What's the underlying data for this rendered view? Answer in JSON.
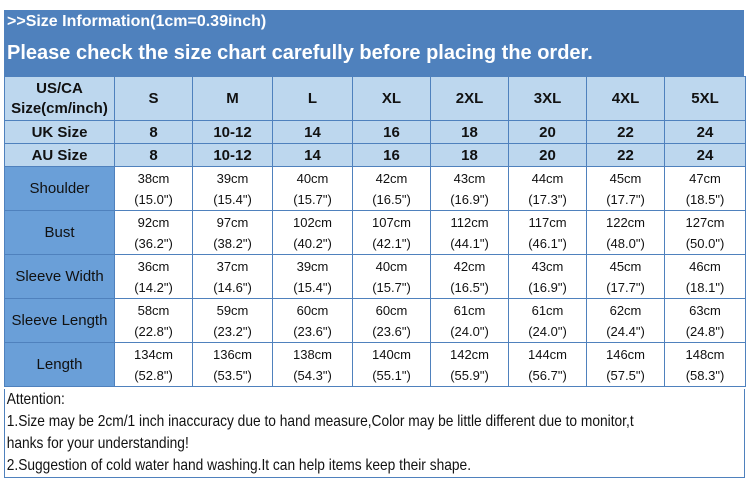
{
  "header": {
    "line1": ">>Size Information(1cm=0.39inch)",
    "line2": "Please check the size chart carefully before placing the order."
  },
  "table": {
    "corner": [
      "US/CA",
      "Size(cm/inch)"
    ],
    "sizes": [
      "S",
      "M",
      "L",
      "XL",
      "2XL",
      "3XL",
      "4XL",
      "5XL"
    ],
    "uk": {
      "label": "UK Size",
      "values": [
        "8",
        "10-12",
        "14",
        "16",
        "18",
        "20",
        "22",
        "24"
      ]
    },
    "au": {
      "label": "AU  Size",
      "values": [
        "8",
        "10-12",
        "14",
        "16",
        "18",
        "20",
        "22",
        "24"
      ]
    },
    "rows": [
      {
        "label": "Shoulder",
        "cm": [
          "38cm",
          "39cm",
          "40cm",
          "42cm",
          "43cm",
          "44cm",
          "45cm",
          "47cm"
        ],
        "inch": [
          "(15.0\")",
          "(15.4\")",
          "(15.7\")",
          "(16.5\")",
          "(16.9\")",
          "(17.3\")",
          "(17.7\")",
          "(18.5\")"
        ]
      },
      {
        "label": "Bust",
        "cm": [
          "92cm",
          "97cm",
          "102cm",
          "107cm",
          "112cm",
          "117cm",
          "122cm",
          "127cm"
        ],
        "inch": [
          "(36.2\")",
          "(38.2\")",
          "(40.2\")",
          "(42.1\")",
          "(44.1\")",
          "(46.1\")",
          "(48.0\")",
          "(50.0\")"
        ]
      },
      {
        "label": "Sleeve Width",
        "cm": [
          "36cm",
          "37cm",
          "39cm",
          "40cm",
          "42cm",
          "43cm",
          "45cm",
          "46cm"
        ],
        "inch": [
          "(14.2\")",
          "(14.6\")",
          "(15.4\")",
          "(15.7\")",
          "(16.5\")",
          "(16.9\")",
          "(17.7\")",
          "(18.1\")"
        ]
      },
      {
        "label": "Sleeve Length",
        "cm": [
          "58cm",
          "59cm",
          "60cm",
          "60cm",
          "61cm",
          "61cm",
          "62cm",
          "63cm"
        ],
        "inch": [
          "(22.8\")",
          "(23.2\")",
          "(23.6\")",
          "(23.6\")",
          "(24.0\")",
          "(24.0\")",
          "(24.4\")",
          "(24.8\")"
        ]
      },
      {
        "label": "Length",
        "cm": [
          "134cm",
          "136cm",
          "138cm",
          "140cm",
          "142cm",
          "144cm",
          "146cm",
          "148cm"
        ],
        "inch": [
          "(52.8\")",
          "(53.5\")",
          "(54.3\")",
          "(55.1\")",
          "(55.9\")",
          "(56.7\")",
          "(57.5\")",
          "(58.3\")"
        ]
      }
    ]
  },
  "attention": {
    "title": "Attention:",
    "lines": [
      "1.Size may be 2cm/1 inch inaccuracy due to hand measure,Color may be little different due to monitor,t",
      "hanks for your understanding!",
      "2.Suggestion of cold water hand washing.It can help items keep their shape."
    ]
  },
  "colors": {
    "header": "#4f81bd",
    "light": "#bdd7ee",
    "label": "#6a9fd8"
  }
}
